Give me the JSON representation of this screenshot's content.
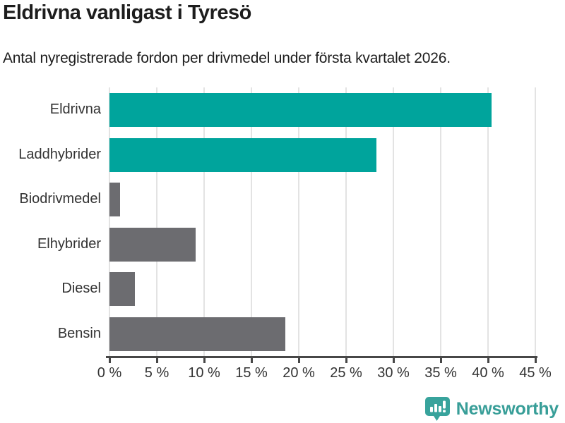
{
  "header": {
    "title": "Eldrivna vanligast i Tyresö",
    "subtitle": "Antal nyregistrerade fordon per drivmedel under första kvartalet 2026."
  },
  "chart_data": {
    "type": "bar",
    "orientation": "horizontal",
    "title": "Eldrivna vanligast i Tyresö",
    "subtitle": "Antal nyregistrerade fordon per drivmedel under första kvartalet 2026.",
    "categories": [
      "Eldrivna",
      "Laddhybrider",
      "Biodrivmedel",
      "Elhybrider",
      "Diesel",
      "Bensin"
    ],
    "values": [
      40.4,
      28.2,
      1.1,
      9.1,
      2.7,
      18.6
    ],
    "unit": "%",
    "bar_colors": [
      "#00a49c",
      "#00a49c",
      "#6c6c70",
      "#6c6c70",
      "#6c6c70",
      "#6c6c70"
    ],
    "xlabel": "",
    "ylabel": "",
    "xlim": [
      0,
      45
    ],
    "x_ticks": [
      0,
      5,
      10,
      15,
      20,
      25,
      30,
      35,
      40,
      45
    ],
    "x_tick_labels": [
      "0 %",
      "5 %",
      "10 %",
      "15 %",
      "20 %",
      "25 %",
      "30 %",
      "35 %",
      "40 %",
      "45 %"
    ],
    "grid": true,
    "legend": false
  },
  "footer": {
    "brand": "Newsworthy",
    "brand_color": "#389e98",
    "icon_color": "#38a39c",
    "logo_icon": "newsworthy-chart-bubble-icon"
  },
  "colors": {
    "accent_teal": "#00a49c",
    "neutral_gray": "#6c6c70",
    "gridline": "#e3e3e3",
    "axis": "#474747",
    "text_dark": "#1d1d1d",
    "text_label": "#333333"
  }
}
